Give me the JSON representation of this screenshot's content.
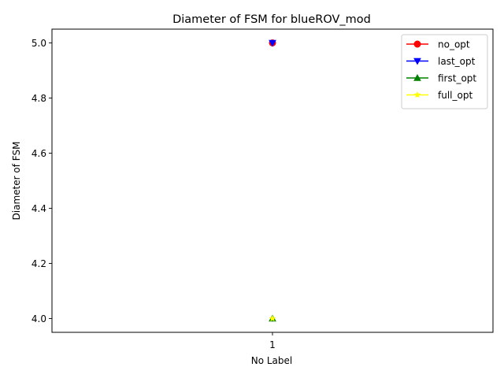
{
  "chart_data": {
    "type": "line",
    "title": "Diameter of FSM for blueROV_mod",
    "xlabel": "No Label",
    "ylabel": "Diameter of FSM",
    "x": [
      1
    ],
    "x_tick_labels": [
      "1"
    ],
    "xlim": [
      0.5,
      1.5
    ],
    "ylim": [
      3.95,
      5.05
    ],
    "y_ticks": [
      4.0,
      4.2,
      4.4,
      4.6,
      4.8,
      5.0
    ],
    "y_tick_labels": [
      "4.0",
      "4.2",
      "4.4",
      "4.6",
      "4.8",
      "5.0"
    ],
    "grid": false,
    "legend_position": "top-right",
    "series": [
      {
        "name": "no_opt",
        "values": [
          5.0
        ],
        "color": "#ff0000",
        "marker": "circle"
      },
      {
        "name": "last_opt",
        "values": [
          5.0
        ],
        "color": "#0000ff",
        "marker": "triangle-down"
      },
      {
        "name": "first_opt",
        "values": [
          4.0
        ],
        "color": "#008000",
        "marker": "triangle-up"
      },
      {
        "name": "full_opt",
        "values": [
          4.0
        ],
        "color": "#ffff00",
        "marker": "star"
      }
    ]
  }
}
